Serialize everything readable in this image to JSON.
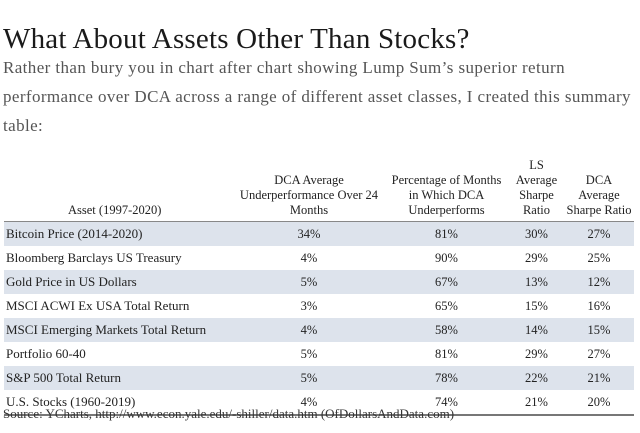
{
  "title": "What About Assets Other Than Stocks?",
  "intro": "Rather than bury you in chart after chart showing Lump Sum’s superior return performance over DCA across a range of different asset classes, I created this summary table:",
  "table": {
    "headers": [
      "Asset (1997-2020)",
      "DCA Average Underperformance Over 24 Months",
      "Percentage of Months in Which DCA Underperforms",
      "LS Average Sharpe Ratio",
      "DCA Average Sharpe Ratio"
    ],
    "rows": [
      [
        "Bitcoin Price (2014-2020)",
        "34%",
        "81%",
        "30%",
        "27%"
      ],
      [
        "Bloomberg Barclays US Treasury",
        "4%",
        "90%",
        "29%",
        "25%"
      ],
      [
        "Gold Price in US Dollars",
        "5%",
        "67%",
        "13%",
        "12%"
      ],
      [
        "MSCI ACWI Ex USA Total Return",
        "3%",
        "65%",
        "15%",
        "16%"
      ],
      [
        "MSCI Emerging Markets Total Return",
        "4%",
        "58%",
        "14%",
        "15%"
      ],
      [
        "Portfolio 60-40",
        "5%",
        "81%",
        "29%",
        "27%"
      ],
      [
        "S&P 500 Total Return",
        "5%",
        "78%",
        "22%",
        "21%"
      ],
      [
        "U.S. Stocks (1960-2019)",
        "4%",
        "74%",
        "21%",
        "20%"
      ]
    ],
    "shade_color": "#dde3ec"
  },
  "source": "Source: YCharts, http://www.econ.yale.edu/-shiller/data.htm (OfDollarsAndData.com)"
}
